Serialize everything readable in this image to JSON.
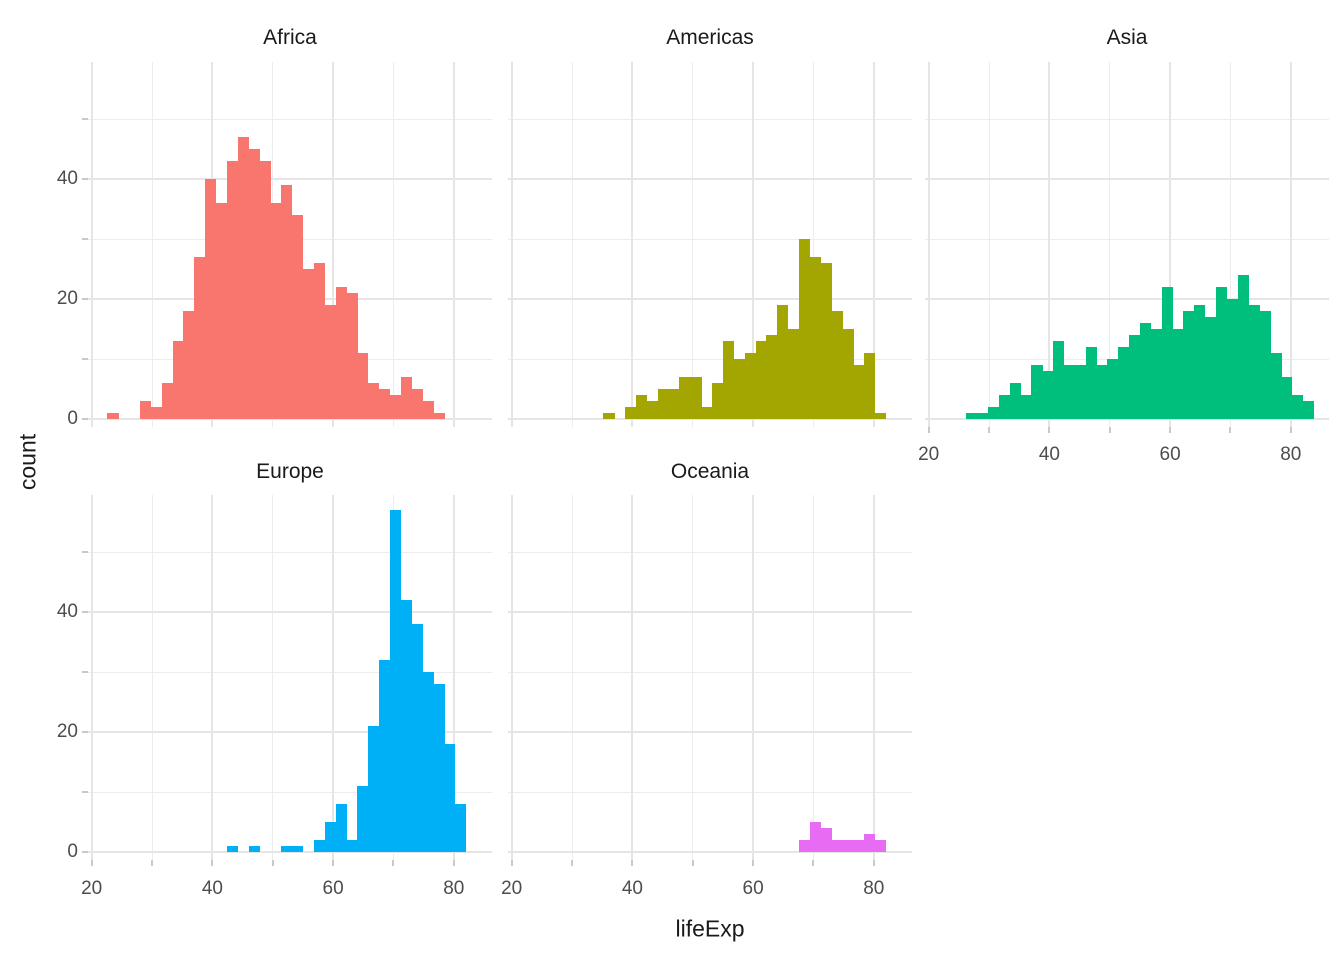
{
  "chart_data": {
    "type": "bar",
    "chart_kind": "faceted-histogram",
    "title": "",
    "xlabel": "lifeExp",
    "ylabel": "count",
    "legend": "none",
    "grid": "on",
    "x_domain": [
      19.4,
      86.3
    ],
    "y_domain": [
      0,
      59.5
    ],
    "x_breaks": {
      "major": [
        20,
        40,
        60,
        80
      ],
      "minor": [
        30,
        50,
        70
      ],
      "labels": [
        "20",
        "40",
        "60",
        "80"
      ]
    },
    "y_breaks": {
      "major": [
        0,
        20,
        40
      ],
      "minor": [
        10,
        30,
        50
      ],
      "labels": [
        "0",
        "20",
        "40"
      ]
    },
    "bin_width": 1.8,
    "facets": [
      {
        "name": "Africa",
        "color": "#F8766D",
        "row": 0,
        "col": 0,
        "bin_start": 22.6,
        "counts": [
          1,
          0,
          0,
          3,
          2,
          6,
          13,
          18,
          27,
          40,
          36,
          43,
          47,
          45,
          43,
          36,
          39,
          34,
          25,
          26,
          19,
          22,
          21,
          11,
          6,
          5,
          4,
          7,
          5,
          3,
          1
        ]
      },
      {
        "name": "Americas",
        "color": "#A3A500",
        "row": 0,
        "col": 1,
        "bin_start": 35.2,
        "counts": [
          1,
          0,
          2,
          4,
          3,
          5,
          5,
          7,
          7,
          2,
          6,
          13,
          10,
          11,
          13,
          14,
          19,
          15,
          30,
          27,
          26,
          18,
          15,
          9,
          11,
          1
        ]
      },
      {
        "name": "Asia",
        "color": "#00BF7D",
        "row": 0,
        "col": 2,
        "bin_start": 26.2,
        "counts": [
          1,
          1,
          2,
          4,
          6,
          4,
          9,
          8,
          13,
          9,
          9,
          12,
          9,
          10,
          12,
          14,
          16,
          15,
          22,
          15,
          18,
          19,
          17,
          22,
          20,
          24,
          19,
          18,
          11,
          7,
          4,
          3
        ]
      },
      {
        "name": "Europe",
        "color": "#00B0F6",
        "row": 1,
        "col": 0,
        "bin_start": 42.4,
        "counts": [
          1,
          0,
          1,
          0,
          0,
          1,
          1,
          0,
          2,
          5,
          8,
          2,
          11,
          21,
          32,
          57,
          42,
          38,
          30,
          28,
          18,
          8
        ]
      },
      {
        "name": "Oceania",
        "color": "#E76BF3",
        "row": 1,
        "col": 1,
        "bin_start": 67.6,
        "counts": [
          2,
          5,
          4,
          2,
          2,
          2,
          3,
          2
        ]
      }
    ],
    "theme": {
      "background": "#FFFFFF",
      "grid_major": "#E5E5E5",
      "grid_minor": "#EDEDED",
      "axis_text": "#4D4D4D",
      "axis_title": "#1A1A1A",
      "strip_text": "#1A1A1A",
      "tick_mark": "#C9C9C9"
    }
  }
}
